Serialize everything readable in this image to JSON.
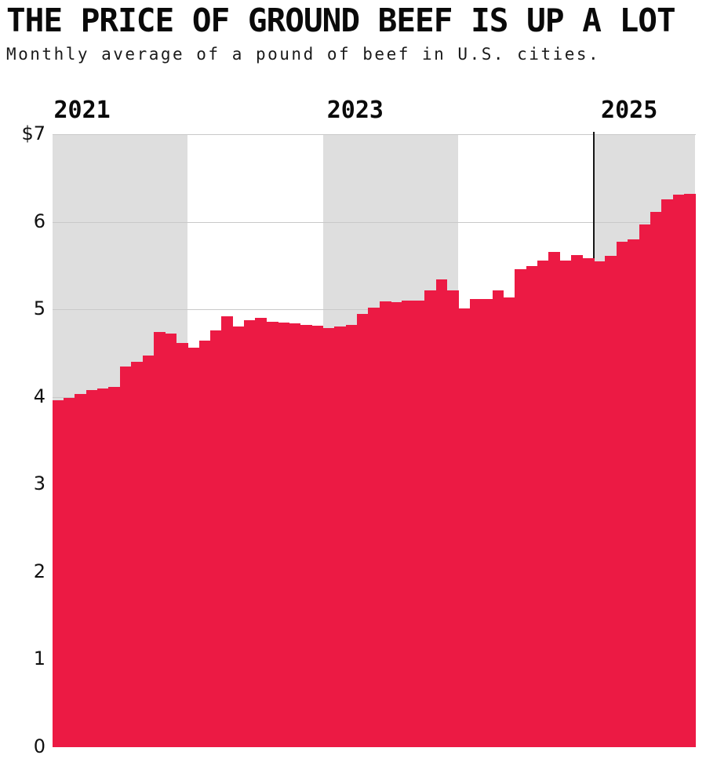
{
  "header": {
    "title": "THE PRICE OF GROUND BEEF IS UP A LOT",
    "subtitle": "Monthly average of a pound of beef in U.S. cities."
  },
  "colors": {
    "bar": "#ec1a44",
    "year_band": "#dedede",
    "gridline": "#c9c9c9",
    "annotation_line": "#161616",
    "text": "#0a0a0a",
    "background": "#ffffff"
  },
  "chart_data": {
    "type": "bar",
    "title": "THE PRICE OF GROUND BEEF IS UP A LOT",
    "subtitle": "Monthly average of a pound of beef in U.S. cities.",
    "ylabel": "",
    "xlabel": "",
    "ylim": [
      0,
      7
    ],
    "grid": "horizontal",
    "y_axis": {
      "tick_labels": [
        "$7",
        "6",
        "5",
        "4",
        "3",
        "2",
        "1",
        "0"
      ],
      "tick_values": [
        7,
        6,
        5,
        4,
        3,
        2,
        1,
        0
      ]
    },
    "x_axis": {
      "year_labels": [
        "2021",
        "2023",
        "2025"
      ],
      "shaded_year_bands": [
        "2021",
        "2023",
        "2025"
      ]
    },
    "annotation_line_at": "2025-01",
    "months": [
      "2021-01",
      "2021-02",
      "2021-03",
      "2021-04",
      "2021-05",
      "2021-06",
      "2021-07",
      "2021-08",
      "2021-09",
      "2021-10",
      "2021-11",
      "2021-12",
      "2022-01",
      "2022-02",
      "2022-03",
      "2022-04",
      "2022-05",
      "2022-06",
      "2022-07",
      "2022-08",
      "2022-09",
      "2022-10",
      "2022-11",
      "2022-12",
      "2023-01",
      "2023-02",
      "2023-03",
      "2023-04",
      "2023-05",
      "2023-06",
      "2023-07",
      "2023-08",
      "2023-09",
      "2023-10",
      "2023-11",
      "2023-12",
      "2024-01",
      "2024-02",
      "2024-03",
      "2024-04",
      "2024-05",
      "2024-06",
      "2024-07",
      "2024-08",
      "2024-09",
      "2024-10",
      "2024-11",
      "2024-12",
      "2025-01",
      "2025-02",
      "2025-03",
      "2025-04",
      "2025-05",
      "2025-06",
      "2025-07",
      "2025-08",
      "2025-09"
    ],
    "series": [
      {
        "name": "Ground beef, price per pound (USD)",
        "values": [
          3.96,
          3.99,
          4.03,
          4.08,
          4.1,
          4.11,
          4.35,
          4.4,
          4.47,
          4.74,
          4.72,
          4.62,
          4.56,
          4.64,
          4.76,
          4.92,
          4.8,
          4.88,
          4.9,
          4.86,
          4.85,
          4.84,
          4.82,
          4.81,
          4.79,
          4.8,
          4.82,
          4.95,
          5.02,
          5.09,
          5.08,
          5.1,
          5.1,
          5.22,
          5.34,
          5.22,
          5.01,
          5.12,
          5.12,
          5.22,
          5.14,
          5.46,
          5.49,
          5.56,
          5.66,
          5.56,
          5.62,
          5.58,
          5.55,
          5.61,
          5.77,
          5.8,
          5.97,
          6.11,
          6.26,
          6.31,
          6.32
        ]
      }
    ]
  }
}
